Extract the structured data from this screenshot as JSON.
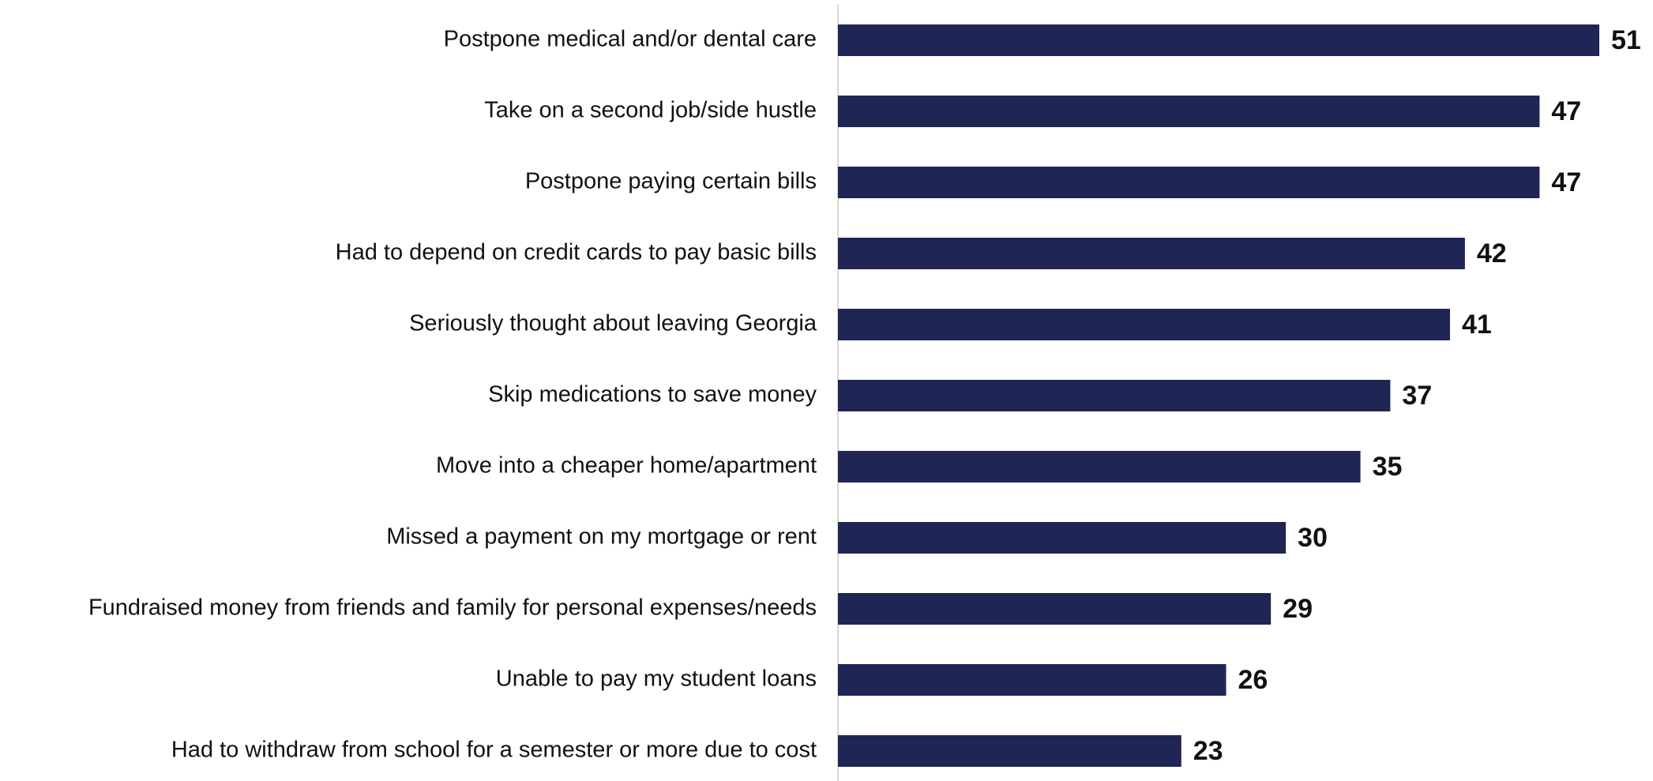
{
  "chart_data": {
    "type": "bar",
    "orientation": "horizontal",
    "color": "#1f2555",
    "categories": [
      "Postpone medical and/or dental care",
      "Take on a second job/side hustle",
      "Postpone paying certain bills",
      "Had to depend on credit cards to pay basic bills",
      "Seriously thought about leaving Georgia",
      "Skip medications to save money",
      "Move into a cheaper home/apartment",
      "Missed a payment on my mortgage or rent",
      "Fundraised money from friends and family for personal expenses/needs",
      "Unable to pay my student loans",
      "Had to withdraw from school for a semester or more due to cost"
    ],
    "values": [
      51,
      47,
      47,
      42,
      41,
      37,
      35,
      30,
      29,
      26,
      23
    ]
  }
}
